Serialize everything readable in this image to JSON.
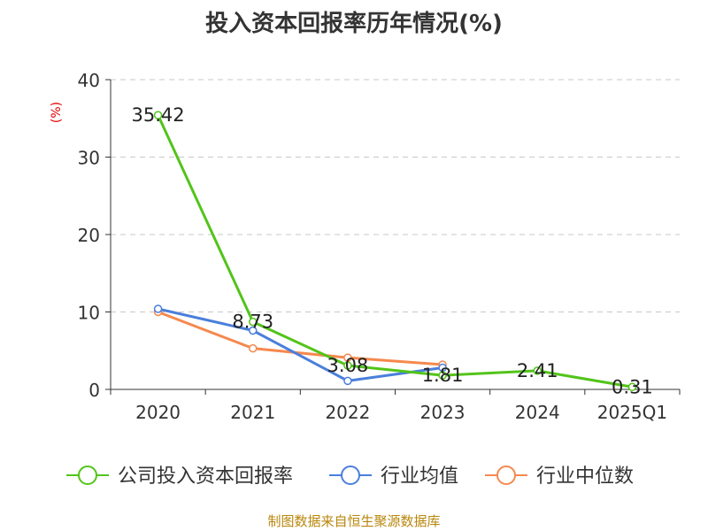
{
  "title": "投入资本回报率历年情况(%)",
  "source": "制图数据来自恒生聚源数据库",
  "unit_label": "(%)",
  "colors": {
    "company": "#52c41a",
    "industry_avg": "#4a7fdc",
    "industry_median": "#f5894e",
    "unit": "#e00000",
    "source": "#b8860b"
  },
  "chart_data": {
    "type": "line",
    "categories": [
      "2020",
      "2021",
      "2022",
      "2023",
      "2024",
      "2025Q1"
    ],
    "ylim": [
      0,
      40
    ],
    "yticks": [
      0,
      10,
      20,
      30,
      40
    ],
    "grid": true,
    "legend_position": "bottom",
    "series": [
      {
        "name": "公司投入资本回报率",
        "color": "#52c41a",
        "values": [
          35.42,
          8.73,
          3.08,
          1.81,
          2.41,
          0.31
        ],
        "labels": [
          "35.42",
          "8.73",
          "3.08",
          "1.81",
          "2.41",
          "0.31"
        ]
      },
      {
        "name": "行业均值",
        "color": "#4a7fdc",
        "values": [
          10.4,
          7.6,
          1.1,
          2.8,
          null,
          null
        ]
      },
      {
        "name": "行业中位数",
        "color": "#f5894e",
        "values": [
          10.0,
          5.3,
          4.1,
          3.2,
          null,
          null
        ]
      }
    ]
  }
}
